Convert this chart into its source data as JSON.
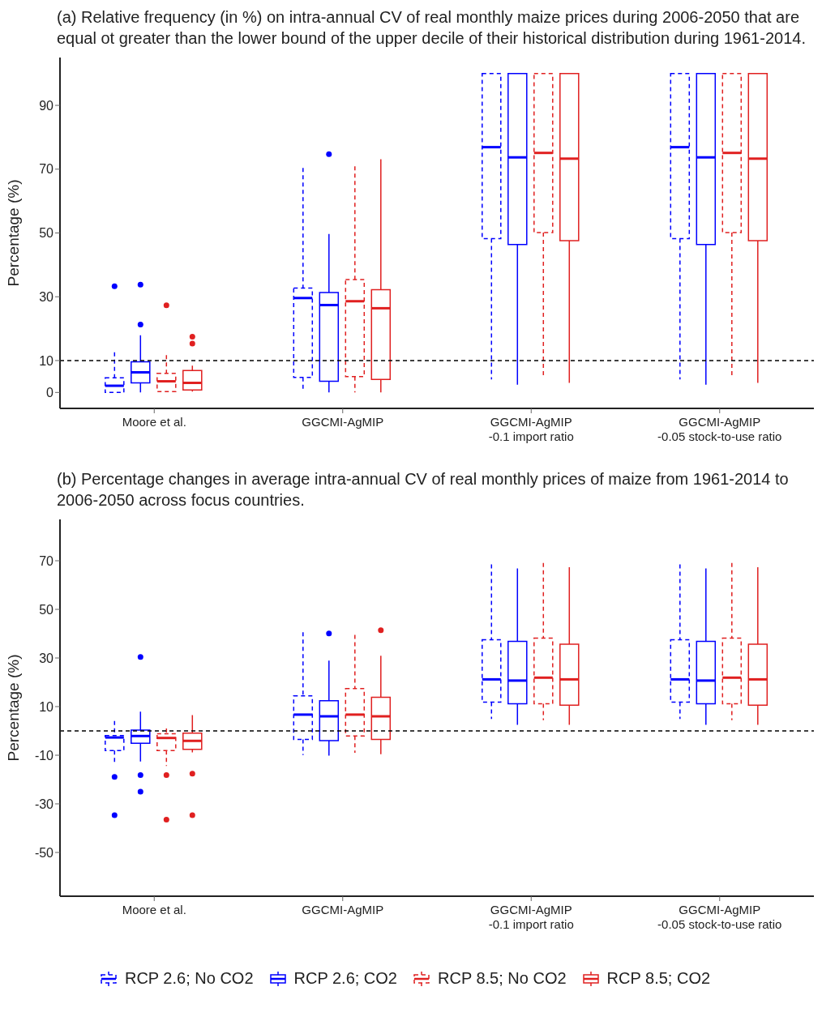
{
  "chart_data": [
    {
      "type": "box",
      "title": "(a) Relative frequency (in %) on intra-annual CV of real monthly maize prices during 2006-2050 that are equal ot greater than the lower bound of the upper decile of their historical distribution during 1961-2014.",
      "ylabel": "Percentage (%)",
      "categories": [
        "Moore et al.",
        "GGCMI-AgMIP",
        "GGCMI-AgMIP\n-0.1 import ratio",
        "GGCMI-AgMIP\n-0.05 stock-to-use ratio"
      ],
      "ylim": [
        -5,
        105
      ],
      "yticks": [
        0,
        10,
        30,
        50,
        70,
        90
      ],
      "ref_lines": [
        {
          "axis": "y",
          "value": 10,
          "color": "#000000",
          "line_style": "dashed"
        }
      ],
      "series": [
        {
          "color": "#0000ff",
          "line_style": "dashed",
          "boxes": [
            {
              "low": 0,
              "q1": 0,
              "median": 2.1,
              "q3": 4.6,
              "high": 12.6,
              "outliers": [
                33.3
              ]
            },
            {
              "low": 0.3,
              "q1": 4.7,
              "median": 29.6,
              "q3": 32.7,
              "high": 70.4
            },
            {
              "low": 4.1,
              "q1": 48.2,
              "median": 76.9,
              "q3": 100,
              "high": 100
            },
            {
              "low": 4.1,
              "q1": 48.2,
              "median": 76.9,
              "q3": 100,
              "high": 100
            }
          ]
        },
        {
          "color": "#0000ff",
          "line_style": "solid",
          "boxes": [
            {
              "low": 0,
              "q1": 3,
              "median": 6.3,
              "q3": 9.6,
              "high": 17.9,
              "outliers": [
                21.3,
                33.8
              ]
            },
            {
              "low": 0,
              "q1": 3.5,
              "median": 27.4,
              "q3": 31.3,
              "high": 49.7,
              "outliers": [
                74.7
              ]
            },
            {
              "low": 2.4,
              "q1": 46.4,
              "median": 73.7,
              "q3": 100,
              "high": 100
            },
            {
              "low": 2.4,
              "q1": 46.4,
              "median": 73.7,
              "q3": 100,
              "high": 100
            }
          ]
        },
        {
          "color": "#e02020",
          "line_style": "dashed",
          "boxes": [
            {
              "low": 0.3,
              "q1": 0.3,
              "median": 3.5,
              "q3": 6,
              "high": 11.7,
              "outliers": [
                27.3
              ]
            },
            {
              "low": 0,
              "q1": 5,
              "median": 28.6,
              "q3": 35.4,
              "high": 70.9
            },
            {
              "low": 4.4,
              "q1": 50.1,
              "median": 75.1,
              "q3": 100,
              "high": 100
            },
            {
              "low": 4.4,
              "q1": 50.1,
              "median": 75.1,
              "q3": 100,
              "high": 100
            }
          ]
        },
        {
          "color": "#e02020",
          "line_style": "solid",
          "boxes": [
            {
              "low": 0.3,
              "q1": 0.8,
              "median": 3,
              "q3": 6.9,
              "high": 8.4,
              "outliers": [
                15.3,
                17.5
              ]
            },
            {
              "low": 0,
              "q1": 4.1,
              "median": 26.4,
              "q3": 32.2,
              "high": 73.1
            },
            {
              "low": 3,
              "q1": 47.6,
              "median": 73.3,
              "q3": 100,
              "high": 100
            },
            {
              "low": 3,
              "q1": 47.6,
              "median": 73.3,
              "q3": 100,
              "high": 100
            }
          ]
        }
      ]
    },
    {
      "type": "box",
      "title": "(b) Percentage changes in average intra-annual CV of real monthly prices of maize from 1961-2014 to 2006-2050 across focus countries.",
      "ylabel": "Percentage (%)",
      "categories": [
        "Moore et al.",
        "GGCMI-AgMIP",
        "GGCMI-AgMIP\n-0.1 import ratio",
        "GGCMI-AgMIP\n-0.05 stock-to-use ratio"
      ],
      "ylim": [
        -68,
        87
      ],
      "yticks": [
        -50,
        -30,
        -10,
        10,
        30,
        50,
        70
      ],
      "ref_lines": [
        {
          "axis": "y",
          "value": 0,
          "color": "#000000",
          "line_style": "dashed"
        }
      ],
      "legend": "bottom",
      "series": [
        {
          "name": "RCP 2.6; No CO2",
          "color": "#0000ff",
          "line_style": "dashed",
          "boxes": [
            {
              "low": -13.7,
              "q1": -8.1,
              "median": -2.7,
              "q3": -1.9,
              "high": 4.1,
              "outliers": [
                -18.9,
                -34.7
              ]
            },
            {
              "low": -9.9,
              "q1": -3.5,
              "median": 6.7,
              "q3": 14.4,
              "high": 40.6
            },
            {
              "low": 4.9,
              "q1": 11.8,
              "median": 21.2,
              "q3": 37.5,
              "high": 68.5
            },
            {
              "low": 4.9,
              "q1": 11.8,
              "median": 21.2,
              "q3": 37.5,
              "high": 68.5
            }
          ]
        },
        {
          "name": "RCP 2.6; CO2",
          "color": "#0000ff",
          "line_style": "solid",
          "boxes": [
            {
              "low": -12.6,
              "q1": -5.1,
              "median": -2.1,
              "q3": 0.3,
              "high": 7.9,
              "outliers": [
                30.4,
                -18.2,
                -25
              ]
            },
            {
              "low": -10.2,
              "q1": -4,
              "median": 6,
              "q3": 12.4,
              "high": 28.9,
              "outliers": [
                40.1
              ]
            },
            {
              "low": 2.5,
              "q1": 11.2,
              "median": 20.7,
              "q3": 36.8,
              "high": 66.8
            },
            {
              "low": 2.5,
              "q1": 11.2,
              "median": 20.7,
              "q3": 36.8,
              "high": 66.8
            }
          ]
        },
        {
          "name": "RCP 8.5; No CO2",
          "color": "#e02020",
          "line_style": "dashed",
          "boxes": [
            {
              "low": -14.4,
              "q1": -8.1,
              "median": -2.9,
              "q3": -1.2,
              "high": 1,
              "outliers": [
                -18.2,
                -36.5
              ]
            },
            {
              "low": -9,
              "q1": -2.1,
              "median": 6.7,
              "q3": 17.4,
              "high": 39.5
            },
            {
              "low": 4.4,
              "q1": 11.2,
              "median": 21.9,
              "q3": 38.2,
              "high": 69.1
            },
            {
              "low": 4.4,
              "q1": 11.2,
              "median": 21.9,
              "q3": 38.2,
              "high": 69.1
            }
          ]
        },
        {
          "name": "RCP 8.5; CO2",
          "color": "#e02020",
          "line_style": "solid",
          "boxes": [
            {
              "low": -8.8,
              "q1": -7.6,
              "median": -4.1,
              "q3": -0.9,
              "high": 6.5,
              "outliers": [
                -17.6,
                -34.7
              ]
            },
            {
              "low": -9.6,
              "q1": -3.5,
              "median": 6,
              "q3": 13.8,
              "high": 30.9,
              "outliers": [
                41.4
              ]
            },
            {
              "low": 2.5,
              "q1": 10.6,
              "median": 21.2,
              "q3": 35.7,
              "high": 67.3
            },
            {
              "low": 2.5,
              "q1": 10.6,
              "median": 21.2,
              "q3": 35.7,
              "high": 67.3
            }
          ]
        }
      ]
    }
  ]
}
